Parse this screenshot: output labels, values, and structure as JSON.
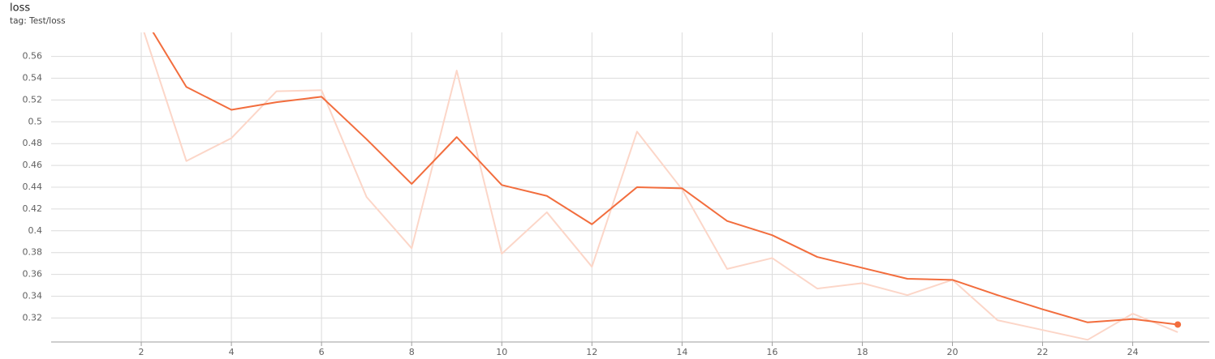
{
  "chart_data": {
    "type": "line",
    "title": "loss",
    "subtitle": "tag: Test/loss",
    "x": [
      2,
      3,
      4,
      5,
      6,
      7,
      8,
      9,
      10,
      11,
      12,
      13,
      14,
      15,
      16,
      17,
      18,
      19,
      20,
      21,
      22,
      23,
      24,
      25
    ],
    "series": [
      {
        "color": "#fcd6c8",
        "values": [
          0.59,
          0.464,
          0.485,
          0.528,
          0.529,
          0.431,
          0.384,
          0.547,
          0.379,
          0.417,
          0.367,
          0.491,
          0.438,
          0.365,
          0.375,
          0.347,
          0.352,
          0.341,
          0.355,
          0.318,
          0.309,
          0.3,
          0.324,
          0.307
        ]
      },
      {
        "color": "#f26d3d",
        "values": [
          0.6,
          0.532,
          0.511,
          0.518,
          0.523,
          0.484,
          0.443,
          0.486,
          0.442,
          0.432,
          0.406,
          0.44,
          0.439,
          0.409,
          0.396,
          0.376,
          0.366,
          0.356,
          0.355,
          0.341,
          0.328,
          0.316,
          0.319,
          0.314
        ]
      }
    ],
    "xlim": [
      0,
      25.7
    ],
    "ylim": [
      0.298,
      0.582
    ],
    "xticks": [
      2,
      4,
      6,
      8,
      10,
      12,
      14,
      16,
      18,
      20,
      22,
      24
    ],
    "yticks": [
      0.32,
      0.34,
      0.36,
      0.38,
      0.4,
      0.42,
      0.44,
      0.46,
      0.48,
      0.5,
      0.52,
      0.54,
      0.56
    ],
    "grid": true
  }
}
